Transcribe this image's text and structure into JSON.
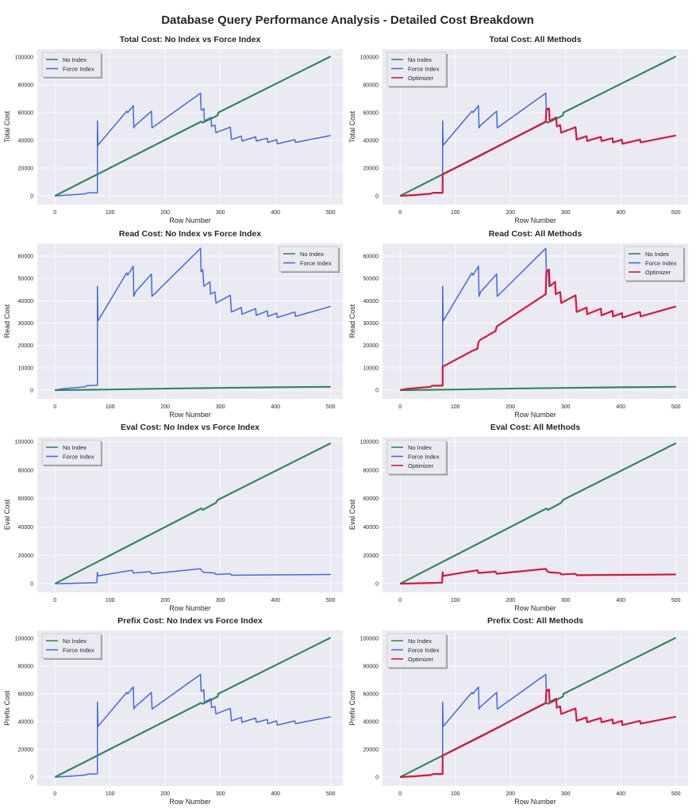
{
  "title": "Database Query Performance Analysis - Detailed Cost Breakdown",
  "colors": {
    "No Index": "#2e8b57",
    "Force Index": "#4169e1",
    "Optimizer": "#dc143c",
    "bg": "#eaeaf2"
  },
  "chart_data": [
    {
      "type": "line",
      "title": "Total Cost: No Index vs Force Index",
      "xlabel": "Row Number",
      "ylabel": "Total Cost",
      "xlim": [
        -32,
        522
      ],
      "ylim": [
        -6300,
        105700
      ],
      "xticks": [
        0,
        100,
        200,
        300,
        400,
        500
      ],
      "yticks": [
        0,
        20000,
        40000,
        60000,
        80000,
        100000
      ],
      "legend": "top-left",
      "grid": true,
      "series": [
        {
          "name": "No Index",
          "ref": "ni_total"
        },
        {
          "name": "Force Index",
          "ref": "fi_total"
        }
      ]
    },
    {
      "type": "line",
      "title": "Total Cost: All Methods",
      "xlabel": "Row Number",
      "ylabel": "Total Cost",
      "xlim": [
        -32,
        522
      ],
      "ylim": [
        -6300,
        105700
      ],
      "xticks": [
        0,
        100,
        200,
        300,
        400,
        500
      ],
      "yticks": [
        0,
        20000,
        40000,
        60000,
        80000,
        100000
      ],
      "legend": "top-left",
      "grid": true,
      "series": [
        {
          "name": "No Index",
          "ref": "ni_total"
        },
        {
          "name": "Force Index",
          "ref": "fi_total"
        },
        {
          "name": "Optimizer",
          "ref": "op_total"
        }
      ]
    },
    {
      "type": "line",
      "title": "Read Cost: No Index vs Force Index",
      "xlabel": "Row Number",
      "ylabel": "Read Cost",
      "xlim": [
        -32,
        522
      ],
      "ylim": [
        -3900,
        65700
      ],
      "xticks": [
        0,
        100,
        200,
        300,
        400,
        500
      ],
      "yticks": [
        0,
        10000,
        20000,
        30000,
        40000,
        50000,
        60000
      ],
      "legend": "top-right",
      "grid": true,
      "series": [
        {
          "name": "No Index",
          "ref": "ni_read"
        },
        {
          "name": "Force Index",
          "ref": "fi_read"
        }
      ]
    },
    {
      "type": "line",
      "title": "Read Cost: All Methods",
      "xlabel": "Row Number",
      "ylabel": "Read Cost",
      "xlim": [
        -32,
        522
      ],
      "ylim": [
        -3900,
        65700
      ],
      "xticks": [
        0,
        100,
        200,
        300,
        400,
        500
      ],
      "yticks": [
        0,
        10000,
        20000,
        30000,
        40000,
        50000,
        60000
      ],
      "legend": "top-right",
      "grid": true,
      "series": [
        {
          "name": "No Index",
          "ref": "ni_read"
        },
        {
          "name": "Force Index",
          "ref": "fi_read"
        },
        {
          "name": "Optimizer",
          "ref": "op_read"
        }
      ]
    },
    {
      "type": "line",
      "title": "Eval Cost: No Index vs Force Index",
      "xlabel": "Row Number",
      "ylabel": "Eval Cost",
      "xlim": [
        -32,
        522
      ],
      "ylim": [
        -6100,
        103400
      ],
      "xticks": [
        0,
        100,
        200,
        300,
        400,
        500
      ],
      "yticks": [
        0,
        20000,
        40000,
        60000,
        80000,
        100000
      ],
      "legend": "top-left",
      "grid": true,
      "series": [
        {
          "name": "No Index",
          "ref": "ni_eval"
        },
        {
          "name": "Force Index",
          "ref": "fi_eval"
        }
      ]
    },
    {
      "type": "line",
      "title": "Eval Cost: All Methods",
      "xlabel": "Row Number",
      "ylabel": "Eval Cost",
      "xlim": [
        -32,
        522
      ],
      "ylim": [
        -6100,
        103400
      ],
      "xticks": [
        0,
        100,
        200,
        300,
        400,
        500
      ],
      "yticks": [
        0,
        20000,
        40000,
        60000,
        80000,
        100000
      ],
      "legend": "top-left",
      "grid": true,
      "series": [
        {
          "name": "No Index",
          "ref": "ni_eval"
        },
        {
          "name": "Force Index",
          "ref": "fi_eval"
        },
        {
          "name": "Optimizer",
          "ref": "fi_eval"
        }
      ]
    },
    {
      "type": "line",
      "title": "Prefix Cost: No Index vs Force Index",
      "xlabel": "Row Number",
      "ylabel": "Prefix Cost",
      "xlim": [
        -32,
        522
      ],
      "ylim": [
        -6300,
        105700
      ],
      "xticks": [
        0,
        100,
        200,
        300,
        400,
        500
      ],
      "yticks": [
        0,
        20000,
        40000,
        60000,
        80000,
        100000
      ],
      "legend": "top-left",
      "grid": true,
      "series": [
        {
          "name": "No Index",
          "ref": "ni_total"
        },
        {
          "name": "Force Index",
          "ref": "fi_total"
        }
      ]
    },
    {
      "type": "line",
      "title": "Prefix Cost: All Methods",
      "xlabel": "Row Number",
      "ylabel": "Prefix Cost",
      "xlim": [
        -32,
        522
      ],
      "ylim": [
        -6300,
        105700
      ],
      "xticks": [
        0,
        100,
        200,
        300,
        400,
        500
      ],
      "yticks": [
        0,
        20000,
        40000,
        60000,
        80000,
        100000
      ],
      "legend": "top-left",
      "grid": true,
      "series": [
        {
          "name": "No Index",
          "ref": "ni_total"
        },
        {
          "name": "Force Index",
          "ref": "fi_total"
        },
        {
          "name": "Optimizer",
          "ref": "op_total"
        }
      ]
    }
  ],
  "series_points": {
    "ni_total": [
      [
        0,
        0
      ],
      [
        265,
        53500
      ],
      [
        268,
        52800
      ],
      [
        290,
        57000
      ],
      [
        295,
        58000
      ],
      [
        296,
        60000
      ],
      [
        500,
        100500
      ]
    ],
    "fi_total": [
      [
        0,
        0
      ],
      [
        30,
        700
      ],
      [
        55,
        1500
      ],
      [
        60,
        2200
      ],
      [
        77,
        2300
      ],
      [
        77,
        54000
      ],
      [
        78,
        36500
      ],
      [
        130,
        61000
      ],
      [
        132,
        60000
      ],
      [
        142,
        65000
      ],
      [
        143,
        49000
      ],
      [
        145,
        50500
      ],
      [
        175,
        61000
      ],
      [
        176,
        49000
      ],
      [
        264,
        74000
      ],
      [
        265,
        62000
      ],
      [
        268,
        62000
      ],
      [
        270,
        63000
      ],
      [
        271,
        54000
      ],
      [
        283,
        56500
      ],
      [
        284,
        50000
      ],
      [
        290,
        51000
      ],
      [
        292,
        45500
      ],
      [
        318,
        49500
      ],
      [
        320,
        40500
      ],
      [
        338,
        43000
      ],
      [
        339,
        39500
      ],
      [
        364,
        42500
      ],
      [
        365,
        39500
      ],
      [
        385,
        41500
      ],
      [
        386,
        38500
      ],
      [
        402,
        40500
      ],
      [
        403,
        37500
      ],
      [
        435,
        40500
      ],
      [
        436,
        38500
      ],
      [
        500,
        43500
      ]
    ],
    "op_total": [
      [
        0,
        0
      ],
      [
        30,
        700
      ],
      [
        55,
        1500
      ],
      [
        60,
        2200
      ],
      [
        77,
        2200
      ],
      [
        77,
        15500
      ],
      [
        140,
        28000
      ],
      [
        264,
        53500
      ],
      [
        265,
        62500
      ],
      [
        270,
        63000
      ],
      [
        271,
        54000
      ],
      [
        283,
        56500
      ],
      [
        284,
        50000
      ],
      [
        290,
        51000
      ],
      [
        292,
        45500
      ],
      [
        318,
        49500
      ],
      [
        320,
        40500
      ],
      [
        338,
        43000
      ],
      [
        339,
        39500
      ],
      [
        364,
        42500
      ],
      [
        365,
        39500
      ],
      [
        385,
        41500
      ],
      [
        386,
        38500
      ],
      [
        402,
        40500
      ],
      [
        403,
        37500
      ],
      [
        435,
        40500
      ],
      [
        436,
        38500
      ],
      [
        500,
        43500
      ]
    ],
    "ni_read": [
      [
        0,
        0
      ],
      [
        100,
        300
      ],
      [
        200,
        700
      ],
      [
        300,
        1000
      ],
      [
        400,
        1300
      ],
      [
        500,
        1500
      ]
    ],
    "fi_read": [
      [
        0,
        0
      ],
      [
        12,
        600
      ],
      [
        55,
        1500
      ],
      [
        58,
        2000
      ],
      [
        77,
        2200
      ],
      [
        77,
        46500
      ],
      [
        78,
        31000
      ],
      [
        130,
        52500
      ],
      [
        132,
        51500
      ],
      [
        142,
        55500
      ],
      [
        143,
        42000
      ],
      [
        146,
        44000
      ],
      [
        175,
        52000
      ],
      [
        176,
        42000
      ],
      [
        264,
        63500
      ],
      [
        265,
        53000
      ],
      [
        268,
        54000
      ],
      [
        270,
        46500
      ],
      [
        281,
        48500
      ],
      [
        282,
        43000
      ],
      [
        290,
        44000
      ],
      [
        292,
        39000
      ],
      [
        318,
        42500
      ],
      [
        320,
        35000
      ],
      [
        338,
        37000
      ],
      [
        339,
        34000
      ],
      [
        364,
        36500
      ],
      [
        365,
        33500
      ],
      [
        385,
        35500
      ],
      [
        386,
        33000
      ],
      [
        402,
        34500
      ],
      [
        403,
        32500
      ],
      [
        435,
        35000
      ],
      [
        436,
        33000
      ],
      [
        500,
        37500
      ]
    ],
    "op_read": [
      [
        0,
        0
      ],
      [
        12,
        600
      ],
      [
        55,
        1500
      ],
      [
        58,
        2000
      ],
      [
        77,
        2000
      ],
      [
        77,
        10500
      ],
      [
        130,
        17500
      ],
      [
        140,
        18500
      ],
      [
        142,
        21500
      ],
      [
        145,
        22500
      ],
      [
        173,
        26500
      ],
      [
        175,
        28500
      ],
      [
        264,
        43000
      ],
      [
        265,
        53000
      ],
      [
        270,
        54000
      ],
      [
        271,
        46500
      ],
      [
        281,
        48500
      ],
      [
        282,
        43000
      ],
      [
        290,
        44000
      ],
      [
        292,
        39000
      ],
      [
        318,
        42500
      ],
      [
        320,
        35000
      ],
      [
        338,
        37000
      ],
      [
        339,
        34000
      ],
      [
        364,
        36500
      ],
      [
        365,
        33500
      ],
      [
        385,
        35500
      ],
      [
        386,
        33000
      ],
      [
        402,
        34500
      ],
      [
        403,
        32500
      ],
      [
        435,
        35000
      ],
      [
        436,
        33000
      ],
      [
        500,
        37500
      ]
    ],
    "ni_eval": [
      [
        0,
        0
      ],
      [
        265,
        53000
      ],
      [
        268,
        52000
      ],
      [
        292,
        57000
      ],
      [
        295,
        59000
      ],
      [
        500,
        99000
      ]
    ],
    "fi_eval": [
      [
        0,
        0
      ],
      [
        76,
        700
      ],
      [
        77,
        8000
      ],
      [
        78,
        5500
      ],
      [
        140,
        9500
      ],
      [
        142,
        7500
      ],
      [
        173,
        8500
      ],
      [
        175,
        7000
      ],
      [
        264,
        10500
      ],
      [
        266,
        9000
      ],
      [
        270,
        8000
      ],
      [
        290,
        7500
      ],
      [
        292,
        6500
      ],
      [
        318,
        7000
      ],
      [
        320,
        6000
      ],
      [
        500,
        6500
      ]
    ]
  }
}
